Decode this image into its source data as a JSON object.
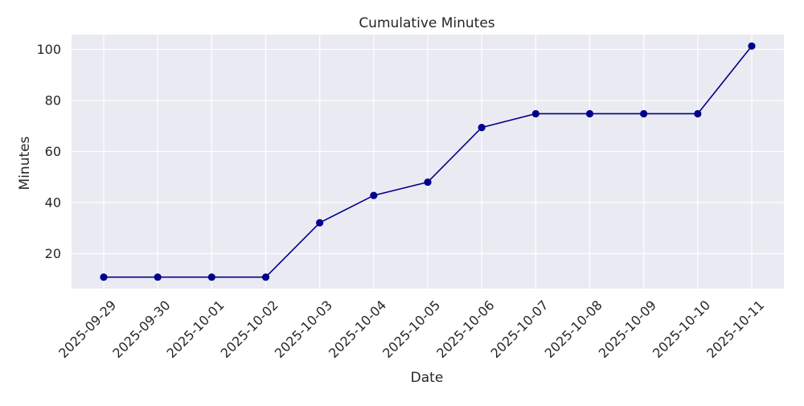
{
  "chart_data": {
    "type": "line",
    "title": "Cumulative Minutes",
    "xlabel": "Date",
    "ylabel": "Minutes",
    "x": [
      "2025-09-29",
      "2025-09-30",
      "2025-10-01",
      "2025-10-02",
      "2025-10-03",
      "2025-10-04",
      "2025-10-05",
      "2025-10-06",
      "2025-10-07",
      "2025-10-08",
      "2025-10-09",
      "2025-10-10",
      "2025-10-11"
    ],
    "series": [
      {
        "values": [
          10.8,
          10.8,
          10.8,
          10.8,
          32.1,
          42.8,
          48.0,
          69.4,
          74.8,
          74.8,
          74.8,
          74.8,
          101.3
        ]
      }
    ],
    "ylim": [
      6.3,
      105.8
    ],
    "yticks": [
      20,
      40,
      60,
      80,
      100
    ],
    "grid": true,
    "marker": "circle",
    "colors": {
      "line": "#00008b",
      "plot_background": "#eaeaf2",
      "grid": "#ffffff"
    }
  }
}
